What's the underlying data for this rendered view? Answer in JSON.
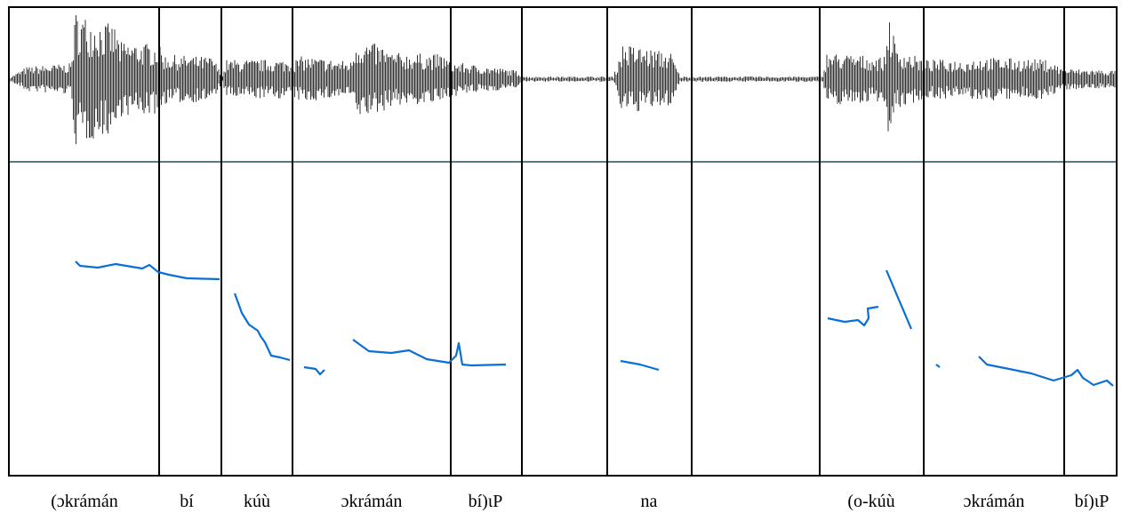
{
  "labels": [
    "(ɔkrámán",
    "bí",
    "kúù",
    "ɔkrámán",
    "bí)ιP",
    "na",
    "(o-kúù",
    "ɔkrámán",
    "bí)ιP"
  ]
}
